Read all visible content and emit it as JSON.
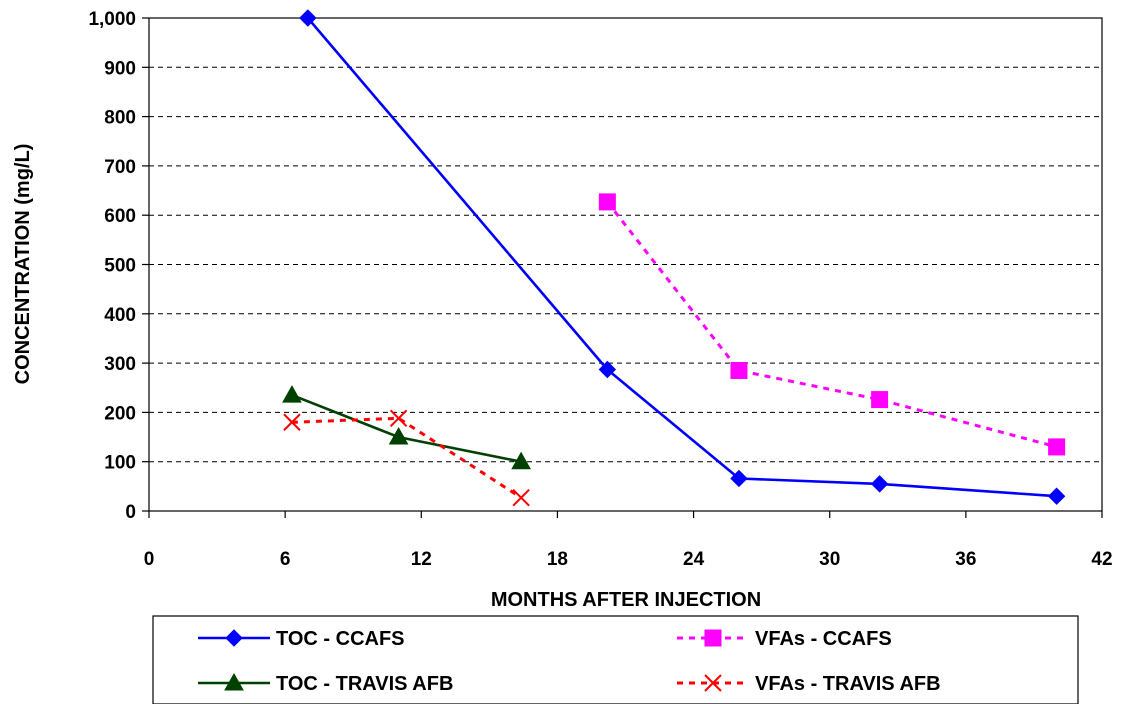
{
  "chart_data": {
    "type": "line",
    "title": "",
    "xlabel": "MONTHS AFTER  INJECTION",
    "ylabel": "CONCENTRATION (mg/L)",
    "xlim": [
      0,
      42
    ],
    "ylim": [
      0,
      1000
    ],
    "x_ticks": [
      0,
      6,
      12,
      18,
      24,
      30,
      36,
      42
    ],
    "y_ticks": [
      0,
      100,
      200,
      300,
      400,
      500,
      600,
      700,
      800,
      900,
      1000
    ],
    "x_tick_labels": [
      "0",
      "6",
      "12",
      "18",
      "24",
      "30",
      "36",
      "42"
    ],
    "y_tick_labels": [
      "0",
      "100",
      "200",
      "300",
      "400",
      "500",
      "600",
      "700",
      "800",
      "900",
      "1,000"
    ],
    "grid": "horizontal dashed",
    "legend_position": "bottom",
    "series": [
      {
        "name": "TOC - CCAFS",
        "color": "#0000ff",
        "line_style": "solid",
        "marker": "diamond",
        "points": [
          [
            7,
            1000
          ],
          [
            20.2,
            287
          ],
          [
            26,
            66
          ],
          [
            32.2,
            55
          ],
          [
            40,
            30
          ]
        ]
      },
      {
        "name": "VFAs - CCAFS",
        "color": "#ff00ff",
        "line_style": "dashed",
        "marker": "square",
        "points": [
          [
            20.2,
            627
          ],
          [
            26,
            285
          ],
          [
            32.2,
            226
          ],
          [
            40,
            130
          ]
        ]
      },
      {
        "name": "TOC - TRAVIS AFB",
        "color": "#004000",
        "line_style": "solid",
        "marker": "triangle",
        "points": [
          [
            6.3,
            235
          ],
          [
            11,
            150
          ],
          [
            16.4,
            100
          ]
        ]
      },
      {
        "name": "VFAs - TRAVIS AFB",
        "color": "#ff0000",
        "line_style": "dashed",
        "marker": "x",
        "points": [
          [
            6.3,
            180
          ],
          [
            11,
            188
          ],
          [
            16.4,
            27
          ]
        ]
      }
    ]
  }
}
